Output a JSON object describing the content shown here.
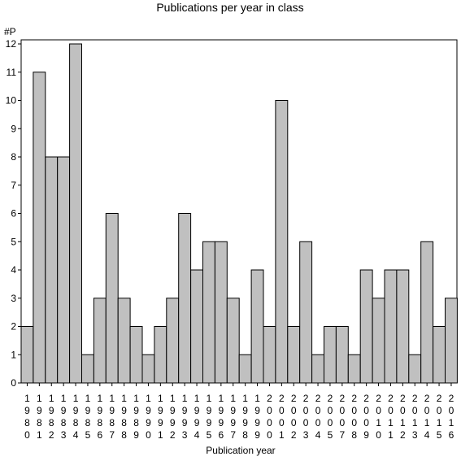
{
  "chart_data": {
    "type": "bar",
    "title": "Publications per year in class",
    "ylabel": "#P",
    "xlabel": "Publication year",
    "categories": [
      "1980",
      "1981",
      "1982",
      "1983",
      "1984",
      "1985",
      "1986",
      "1987",
      "1988",
      "1989",
      "1990",
      "1991",
      "1992",
      "1993",
      "1994",
      "1995",
      "1996",
      "1997",
      "1998",
      "1999",
      "2000",
      "2001",
      "2002",
      "2003",
      "2004",
      "2005",
      "2007",
      "2008",
      "2009",
      "2010",
      "2011",
      "2012",
      "2013",
      "2014",
      "2015",
      "2016"
    ],
    "values": [
      2,
      11,
      8,
      8,
      12,
      1,
      3,
      6,
      3,
      2,
      1,
      2,
      3,
      6,
      4,
      5,
      5,
      3,
      1,
      4,
      2,
      10,
      2,
      5,
      1,
      2,
      2,
      1,
      4,
      3,
      4,
      4,
      1,
      5,
      2,
      3
    ],
    "ylim": [
      0,
      12
    ],
    "yticks": [
      0,
      1,
      2,
      3,
      4,
      5,
      6,
      7,
      8,
      9,
      10,
      11,
      12
    ],
    "grid": false,
    "colors": {
      "bar_fill": "#c0c0c0",
      "bar_stroke": "#000000"
    }
  }
}
